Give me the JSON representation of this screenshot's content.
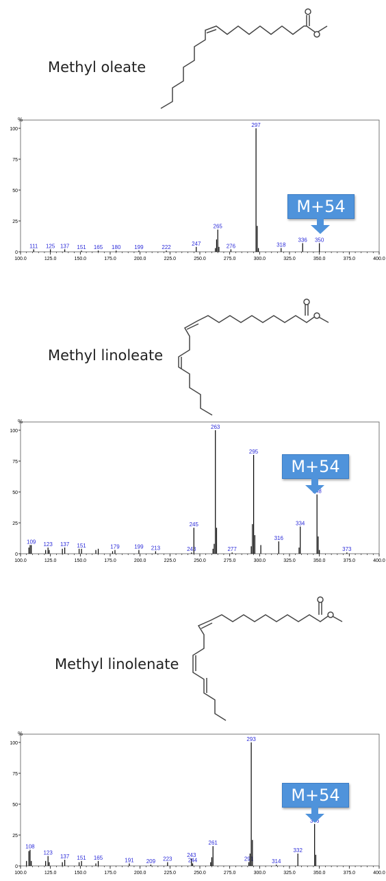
{
  "panels": [
    {
      "compound_name": "Methyl oleate",
      "callout_label": "M+54",
      "callout_target_mz": 350
    },
    {
      "compound_name": "Methyl linoleate",
      "callout_label": "M+54",
      "callout_target_mz": 348
    },
    {
      "compound_name": "Methyl linolenate",
      "callout_label": "M+54",
      "callout_target_mz": 346
    }
  ],
  "colors": {
    "peaks": "#000000",
    "peak_labels": "#2b2bd9",
    "axis": "#000000",
    "callout": "#4f93db"
  },
  "chart_data": [
    {
      "type": "bar",
      "title": "Methyl oleate",
      "ylabel": "%",
      "xlim": [
        100,
        400
      ],
      "ylim": [
        0,
        100
      ],
      "x_ticks": [
        "100.0",
        "125.0",
        "150.0",
        "175.0",
        "200.0",
        "225.0",
        "250.0",
        "275.0",
        "300.0",
        "325.0",
        "350.0",
        "375.0",
        "400.0"
      ],
      "y_ticks": [
        "0",
        "25",
        "50",
        "75",
        "100"
      ],
      "grid": false,
      "peaks": [
        {
          "mz": 111,
          "intensity": 2,
          "label": "111"
        },
        {
          "mz": 125,
          "intensity": 2,
          "label": "125"
        },
        {
          "mz": 137,
          "intensity": 2,
          "label": "137"
        },
        {
          "mz": 151,
          "intensity": 1,
          "label": "151"
        },
        {
          "mz": 165,
          "intensity": 1,
          "label": "165"
        },
        {
          "mz": 180,
          "intensity": 1,
          "label": "180"
        },
        {
          "mz": 199,
          "intensity": 1,
          "label": "199"
        },
        {
          "mz": 222,
          "intensity": 1,
          "label": "222"
        },
        {
          "mz": 247,
          "intensity": 4,
          "label": "247"
        },
        {
          "mz": 263,
          "intensity": 3
        },
        {
          "mz": 264,
          "intensity": 10
        },
        {
          "mz": 265,
          "intensity": 18,
          "label": "265"
        },
        {
          "mz": 266,
          "intensity": 4
        },
        {
          "mz": 276,
          "intensity": 2,
          "label": "276"
        },
        {
          "mz": 297,
          "intensity": 100,
          "label": "297"
        },
        {
          "mz": 298,
          "intensity": 21
        },
        {
          "mz": 299,
          "intensity": 3
        },
        {
          "mz": 318,
          "intensity": 3,
          "label": "318"
        },
        {
          "mz": 336,
          "intensity": 7,
          "label": "336"
        },
        {
          "mz": 350,
          "intensity": 7,
          "label": "350"
        }
      ]
    },
    {
      "type": "bar",
      "title": "Methyl linoleate",
      "ylabel": "%",
      "xlim": [
        100,
        400
      ],
      "ylim": [
        0,
        100
      ],
      "x_ticks": [
        "100.0",
        "125.0",
        "150.0",
        "175.0",
        "200.0",
        "225.0",
        "250.0",
        "275.0",
        "300.0",
        "325.0",
        "350.0",
        "375.0",
        "400.0"
      ],
      "y_ticks": [
        "0",
        "25",
        "50",
        "75",
        "100"
      ],
      "grid": false,
      "peaks": [
        {
          "mz": 107,
          "intensity": 5
        },
        {
          "mz": 108,
          "intensity": 7
        },
        {
          "mz": 109,
          "intensity": 7,
          "label": "109"
        },
        {
          "mz": 121,
          "intensity": 3
        },
        {
          "mz": 123,
          "intensity": 5,
          "label": "123"
        },
        {
          "mz": 124,
          "intensity": 3
        },
        {
          "mz": 135,
          "intensity": 4
        },
        {
          "mz": 137,
          "intensity": 5,
          "label": "137"
        },
        {
          "mz": 149,
          "intensity": 4
        },
        {
          "mz": 151,
          "intensity": 4,
          "label": "151"
        },
        {
          "mz": 163,
          "intensity": 3
        },
        {
          "mz": 165,
          "intensity": 4
        },
        {
          "mz": 177,
          "intensity": 2
        },
        {
          "mz": 179,
          "intensity": 3,
          "label": "179"
        },
        {
          "mz": 199,
          "intensity": 3,
          "label": "199"
        },
        {
          "mz": 213,
          "intensity": 2,
          "label": "213"
        },
        {
          "mz": 243,
          "intensity": 1,
          "label": "243"
        },
        {
          "mz": 245,
          "intensity": 21,
          "label": "245"
        },
        {
          "mz": 261,
          "intensity": 4
        },
        {
          "mz": 262,
          "intensity": 8
        },
        {
          "mz": 263,
          "intensity": 100,
          "label": "263"
        },
        {
          "mz": 264,
          "intensity": 21
        },
        {
          "mz": 277,
          "intensity": 1,
          "label": "277"
        },
        {
          "mz": 293,
          "intensity": 6
        },
        {
          "mz": 294,
          "intensity": 24
        },
        {
          "mz": 295,
          "intensity": 80,
          "label": "295"
        },
        {
          "mz": 296,
          "intensity": 15
        },
        {
          "mz": 301,
          "intensity": 7
        },
        {
          "mz": 316,
          "intensity": 10,
          "label": "316"
        },
        {
          "mz": 333,
          "intensity": 5
        },
        {
          "mz": 334,
          "intensity": 22,
          "label": "334"
        },
        {
          "mz": 348,
          "intensity": 48,
          "label": "348"
        },
        {
          "mz": 349,
          "intensity": 14
        },
        {
          "mz": 350,
          "intensity": 3
        },
        {
          "mz": 373,
          "intensity": 1,
          "label": "373"
        }
      ]
    },
    {
      "type": "bar",
      "title": "Methyl linolenate",
      "ylabel": "%",
      "xlim": [
        100,
        400
      ],
      "ylim": [
        0,
        100
      ],
      "x_ticks": [
        "100.0",
        "125.0",
        "150.0",
        "175.0",
        "200.0",
        "225.0",
        "250.0",
        "275.0",
        "300.0",
        "325.0",
        "350.0",
        "375.0",
        "400.0"
      ],
      "y_ticks": [
        "0",
        "25",
        "50",
        "75",
        "100"
      ],
      "grid": false,
      "peaks": [
        {
          "mz": 105,
          "intensity": 4
        },
        {
          "mz": 107,
          "intensity": 12
        },
        {
          "mz": 108,
          "intensity": 13,
          "label": "108"
        },
        {
          "mz": 109,
          "intensity": 4
        },
        {
          "mz": 121,
          "intensity": 4
        },
        {
          "mz": 123,
          "intensity": 8,
          "label": "123"
        },
        {
          "mz": 124,
          "intensity": 3
        },
        {
          "mz": 135,
          "intensity": 3
        },
        {
          "mz": 137,
          "intensity": 5,
          "label": "137"
        },
        {
          "mz": 149,
          "intensity": 3
        },
        {
          "mz": 151,
          "intensity": 4,
          "label": "151"
        },
        {
          "mz": 163,
          "intensity": 2
        },
        {
          "mz": 165,
          "intensity": 4,
          "label": "165"
        },
        {
          "mz": 191,
          "intensity": 2,
          "label": "191"
        },
        {
          "mz": 209,
          "intensity": 1,
          "label": "209"
        },
        {
          "mz": 223,
          "intensity": 3,
          "label": "223"
        },
        {
          "mz": 243,
          "intensity": 6,
          "label": "243"
        },
        {
          "mz": 244,
          "intensity": 2,
          "label": "244"
        },
        {
          "mz": 259,
          "intensity": 3
        },
        {
          "mz": 260,
          "intensity": 7
        },
        {
          "mz": 261,
          "intensity": 16,
          "label": "261"
        },
        {
          "mz": 291,
          "intensity": 3,
          "label": "291"
        },
        {
          "mz": 292,
          "intensity": 10
        },
        {
          "mz": 293,
          "intensity": 100,
          "label": "293"
        },
        {
          "mz": 294,
          "intensity": 21
        },
        {
          "mz": 314,
          "intensity": 1,
          "label": "314"
        },
        {
          "mz": 332,
          "intensity": 10,
          "label": "332"
        },
        {
          "mz": 346,
          "intensity": 34,
          "label": "346"
        },
        {
          "mz": 347,
          "intensity": 9
        }
      ]
    }
  ]
}
